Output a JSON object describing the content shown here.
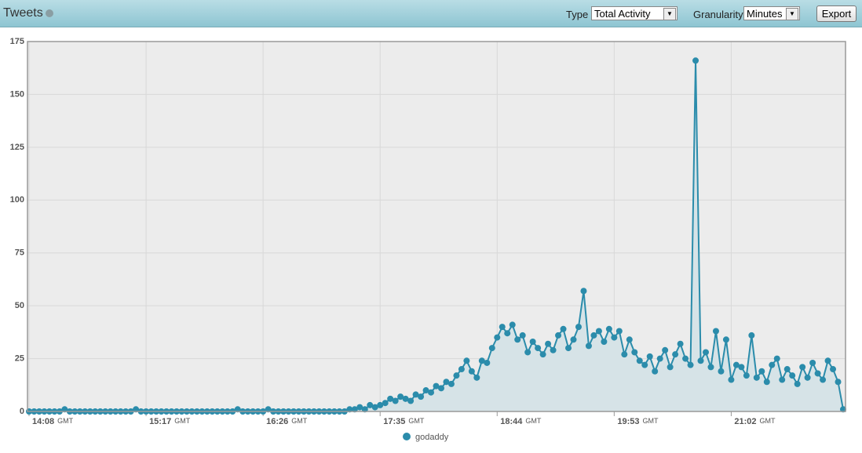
{
  "toolbar": {
    "title": "Tweets",
    "type_label": "Type",
    "type_value": "Total Activity",
    "granularity_label": "Granularity",
    "granularity_value": "Minutes",
    "export": "Export"
  },
  "chart_data": {
    "type": "line",
    "color": "#2b8cab",
    "area_color": "#d6e3e7",
    "grid": true,
    "time_zone": "GMT",
    "x": [
      "14:08",
      "14:11",
      "14:14",
      "14:17",
      "14:20",
      "14:23",
      "14:26",
      "14:29",
      "14:32",
      "14:35",
      "14:38",
      "14:41",
      "14:44",
      "14:47",
      "14:50",
      "14:53",
      "14:56",
      "14:59",
      "15:02",
      "15:05",
      "15:08",
      "15:11",
      "15:14",
      "15:17",
      "15:20",
      "15:23",
      "15:26",
      "15:29",
      "15:32",
      "15:35",
      "15:38",
      "15:41",
      "15:44",
      "15:47",
      "15:50",
      "15:53",
      "15:56",
      "15:59",
      "16:02",
      "16:05",
      "16:08",
      "16:11",
      "16:14",
      "16:17",
      "16:20",
      "16:23",
      "16:26",
      "16:29",
      "16:32",
      "16:35",
      "16:38",
      "16:41",
      "16:44",
      "16:47",
      "16:50",
      "16:53",
      "16:56",
      "16:59",
      "17:02",
      "17:05",
      "17:08",
      "17:11",
      "17:14",
      "17:17",
      "17:20",
      "17:23",
      "17:26",
      "17:29",
      "17:32",
      "17:35",
      "17:38",
      "17:41",
      "17:44",
      "17:47",
      "17:50",
      "17:53",
      "17:56",
      "17:59",
      "18:02",
      "18:05",
      "18:08",
      "18:11",
      "18:14",
      "18:17",
      "18:20",
      "18:23",
      "18:26",
      "18:29",
      "18:32",
      "18:35",
      "18:38",
      "18:41",
      "18:44",
      "18:47",
      "18:50",
      "18:53",
      "18:56",
      "18:59",
      "19:02",
      "19:05",
      "19:08",
      "19:11",
      "19:14",
      "19:17",
      "19:20",
      "19:23",
      "19:26",
      "19:29",
      "19:32",
      "19:35",
      "19:38",
      "19:41",
      "19:44",
      "19:47",
      "19:50",
      "19:53",
      "19:56",
      "19:59",
      "20:02",
      "20:05",
      "20:08",
      "20:11",
      "20:14",
      "20:17",
      "20:20",
      "20:23",
      "20:26",
      "20:29",
      "20:32",
      "20:35",
      "20:38",
      "20:41",
      "20:44",
      "20:47",
      "20:50",
      "20:53",
      "20:56",
      "20:59",
      "21:02",
      "21:05",
      "21:08",
      "21:11",
      "21:14",
      "21:17",
      "21:20",
      "21:23",
      "21:26",
      "21:29",
      "21:32",
      "21:35",
      "21:38",
      "21:41",
      "21:44",
      "21:47",
      "21:50",
      "21:53",
      "21:56",
      "21:59",
      "22:02",
      "22:05",
      "22:08"
    ],
    "series": [
      {
        "name": "godaddy",
        "color": "#2b8cab",
        "values": [
          0,
          0,
          0,
          0,
          0,
          0,
          0,
          1,
          0,
          0,
          0,
          0,
          0,
          0,
          0,
          0,
          0,
          0,
          0,
          0,
          0,
          1,
          0,
          0,
          0,
          0,
          0,
          0,
          0,
          0,
          0,
          0,
          0,
          0,
          0,
          0,
          0,
          0,
          0,
          0,
          0,
          1,
          0,
          0,
          0,
          0,
          0,
          1,
          0,
          0,
          0,
          0,
          0,
          0,
          0,
          0,
          0,
          0,
          0,
          0,
          0,
          0,
          0,
          1,
          1,
          2,
          1,
          3,
          2,
          3,
          4,
          6,
          5,
          7,
          6,
          5,
          8,
          7,
          10,
          9,
          12,
          11,
          14,
          13,
          17,
          20,
          24,
          19,
          16,
          24,
          23,
          30,
          35,
          40,
          37,
          41,
          34,
          36,
          28,
          33,
          30,
          27,
          32,
          29,
          36,
          39,
          30,
          34,
          40,
          57,
          31,
          36,
          38,
          33,
          39,
          35,
          38,
          27,
          34,
          28,
          24,
          22,
          26,
          19,
          25,
          29,
          21,
          27,
          32,
          25,
          22,
          166,
          24,
          28,
          21,
          38,
          19,
          34,
          15,
          22,
          21,
          17,
          36,
          16,
          19,
          14,
          22,
          25,
          15,
          20,
          17,
          13,
          21,
          16,
          23,
          18,
          15,
          24,
          20,
          14,
          1
        ]
      }
    ],
    "xticks": [
      "14:08",
      "15:17",
      "16:26",
      "17:35",
      "18:44",
      "19:53",
      "21:02"
    ],
    "ylim": [
      0,
      175
    ],
    "yticks": [
      0,
      25,
      50,
      75,
      100,
      125,
      150,
      175
    ]
  }
}
